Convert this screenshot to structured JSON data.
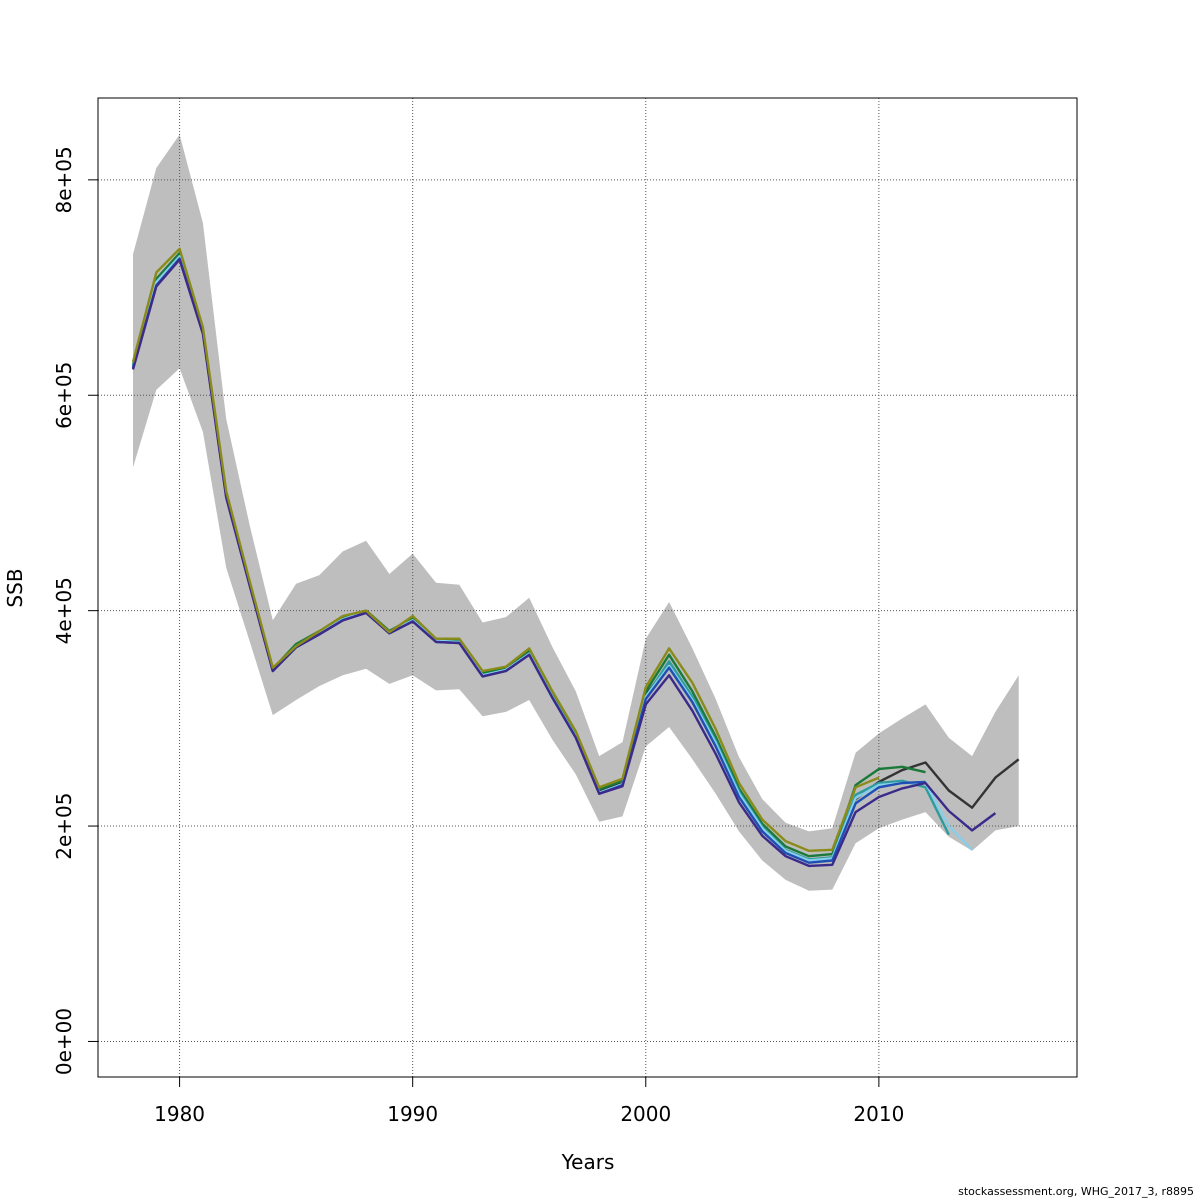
{
  "chart_data": {
    "type": "line",
    "title": "",
    "xlabel": "Years",
    "ylabel": "SSB",
    "xlim": [
      1976.5,
      2018.5
    ],
    "ylim": [
      -33000,
      876000
    ],
    "x_ticks": [
      1980,
      1990,
      2000,
      2010
    ],
    "x_tick_labels": [
      "1980",
      "1990",
      "2000",
      "2010"
    ],
    "y_ticks": [
      0,
      200000,
      400000,
      600000,
      800000
    ],
    "y_tick_labels": [
      "0e+00",
      "2e+05",
      "4e+05",
      "6e+05",
      "8e+05"
    ],
    "grid": true,
    "legend": "none",
    "confidence_band": {
      "color": "#bebebe",
      "x": [
        1978,
        1979,
        1980,
        1981,
        1982,
        1983,
        1984,
        1985,
        1986,
        1987,
        1988,
        1989,
        1990,
        1991,
        1992,
        1993,
        1994,
        1995,
        1996,
        1997,
        1998,
        1999,
        2000,
        2001,
        2002,
        2003,
        2004,
        2005,
        2006,
        2007,
        2008,
        2009,
        2010,
        2011,
        2012,
        2013,
        2014,
        2015,
        2016
      ],
      "lower": [
        533000,
        605000,
        625000,
        566000,
        440000,
        372000,
        303000,
        317000,
        330000,
        340000,
        346000,
        332000,
        340000,
        326000,
        327000,
        302000,
        306000,
        317000,
        280000,
        248000,
        204000,
        209000,
        274000,
        292000,
        262000,
        230000,
        195000,
        168000,
        150000,
        140000,
        141000,
        184000,
        198000,
        206000,
        213000,
        190000,
        177000,
        196000,
        200000
      ],
      "upper": [
        731000,
        811000,
        842000,
        760000,
        578000,
        480000,
        391000,
        425000,
        433000,
        455000,
        465000,
        434000,
        453000,
        426000,
        424000,
        389000,
        394000,
        412000,
        366000,
        325000,
        265000,
        278000,
        374000,
        408000,
        365000,
        318000,
        264000,
        225000,
        203000,
        195000,
        198000,
        268000,
        286000,
        300000,
        313000,
        282000,
        265000,
        306000,
        340000
      ]
    },
    "series": [
      {
        "color": "#333333",
        "x": [
          1978,
          1979,
          1980,
          1981,
          1982,
          1983,
          1984,
          1985,
          1986,
          1987,
          1988,
          1989,
          1990,
          1991,
          1992,
          1993,
          1994,
          1995,
          1996,
          1997,
          1998,
          1999,
          2000,
          2001,
          2002,
          2003,
          2004,
          2005,
          2006,
          2007,
          2008,
          2009,
          2010,
          2011,
          2012,
          2013,
          2014,
          2015,
          2016
        ],
        "values": [
          627000,
          706000,
          730000,
          660000,
          508000,
          426000,
          346000,
          368000,
          380000,
          394000,
          400000,
          381000,
          393000,
          373000,
          372000,
          341000,
          347000,
          362000,
          322000,
          285000,
          233000,
          241000,
          322000,
          350000,
          315000,
          275000,
          229000,
          197000,
          176000,
          167000,
          169000,
          225000,
          241000,
          252000,
          259000,
          233000,
          217000,
          245000,
          262000
        ]
      },
      {
        "color": "#1b7a3a",
        "x": [
          1978,
          1979,
          1980,
          1981,
          1982,
          1983,
          1984,
          1985,
          1986,
          1987,
          1988,
          1989,
          1990,
          1991,
          1992,
          1993,
          1994,
          1995,
          1996,
          1997,
          1998,
          1999,
          2000,
          2001,
          2002,
          2003,
          2004,
          2005,
          2006,
          2007,
          2008,
          2009,
          2010,
          2011,
          2012
        ],
        "values": [
          628000,
          708000,
          732000,
          661000,
          509000,
          427000,
          346000,
          369000,
          381000,
          394000,
          400000,
          381000,
          393000,
          373000,
          373000,
          342000,
          347000,
          363000,
          323000,
          286000,
          234000,
          242000,
          325000,
          359000,
          325000,
          283000,
          235000,
          202000,
          181000,
          172000,
          174000,
          238000,
          253000,
          255000,
          250000
        ]
      },
      {
        "color": "#2e9c9c",
        "x": [
          1978,
          1979,
          1980,
          1981,
          1982,
          1983,
          1984,
          1985,
          1986,
          1987,
          1988,
          1989,
          1990,
          1991,
          1992,
          1993,
          1994,
          1995,
          1996,
          1997,
          1998,
          1999,
          2000,
          2001,
          2002,
          2003,
          2004,
          2005,
          2006,
          2007,
          2008,
          2009,
          2010,
          2011,
          2012,
          2013
        ],
        "values": [
          626000,
          705000,
          729000,
          659000,
          507000,
          425000,
          345000,
          367000,
          379000,
          392000,
          399000,
          380000,
          391000,
          372000,
          371000,
          340000,
          345000,
          360000,
          320000,
          283000,
          231000,
          239000,
          320000,
          353000,
          320000,
          279000,
          232000,
          199000,
          178000,
          169000,
          171000,
          229000,
          240000,
          242000,
          236000,
          192000
        ]
      },
      {
        "color": "#87ceeb",
        "x": [
          1978,
          1979,
          1980,
          1981,
          1982,
          1983,
          1984,
          1985,
          1986,
          1987,
          1988,
          1989,
          1990,
          1991,
          1992,
          1993,
          1994,
          1995,
          1996,
          1997,
          1998,
          1999,
          2000,
          2001,
          2002,
          2003,
          2004,
          2005,
          2006,
          2007,
          2008,
          2009,
          2010,
          2011,
          2012,
          2013,
          2014
        ],
        "values": [
          626000,
          705000,
          729000,
          659000,
          507000,
          425000,
          345000,
          367000,
          379000,
          392000,
          399000,
          380000,
          391000,
          372000,
          371000,
          340000,
          345000,
          360000,
          320000,
          283000,
          231000,
          239000,
          320000,
          349000,
          317000,
          277000,
          230000,
          198000,
          177000,
          168000,
          170000,
          226000,
          238000,
          240000,
          240000,
          200000,
          178000
        ]
      },
      {
        "color": "#1f4fb3",
        "x": [
          1978,
          1979,
          1980,
          1981,
          1982,
          1983,
          1984,
          1985,
          1986,
          1987,
          1988,
          1989,
          1990,
          1991,
          1992,
          1993,
          1994,
          1995,
          1996,
          1997,
          1998,
          1999,
          2000,
          2001,
          2002,
          2003,
          2004,
          2005,
          2006,
          2007,
          2008,
          2009,
          2010,
          2011,
          2012
        ],
        "values": [
          625000,
          702000,
          727000,
          658000,
          506000,
          424000,
          344000,
          366000,
          378000,
          391000,
          398000,
          379000,
          390000,
          371000,
          370000,
          339000,
          344000,
          359000,
          319000,
          282000,
          230000,
          238000,
          318000,
          347000,
          315000,
          274000,
          227000,
          195000,
          175000,
          166000,
          168000,
          221000,
          236000,
          240000,
          241000
        ]
      },
      {
        "color": "#3b2a8a",
        "x": [
          1978,
          1979,
          1980,
          1981,
          1982,
          1983,
          1984,
          1985,
          1986,
          1987,
          1988,
          1989,
          1990,
          1991,
          1992,
          1993,
          1994,
          1995,
          1996,
          1997,
          1998,
          1999,
          2000,
          2001,
          2002,
          2003,
          2004,
          2005,
          2006,
          2007,
          2008,
          2009,
          2010,
          2011,
          2012,
          2013,
          2014,
          2015
        ],
        "values": [
          624000,
          701000,
          726000,
          657000,
          505000,
          424000,
          344000,
          366000,
          378000,
          391000,
          398000,
          379000,
          390000,
          371000,
          370000,
          339000,
          344000,
          359000,
          319000,
          282000,
          230000,
          237000,
          313000,
          340000,
          307000,
          267000,
          222000,
          191000,
          172000,
          163000,
          164000,
          213000,
          227000,
          235000,
          240000,
          214000,
          196000,
          212000
        ]
      },
      {
        "color": "#8b8b1a",
        "x": [
          1978,
          1979,
          1980,
          1981,
          1982,
          1983,
          1984,
          1985,
          1986,
          1987,
          1988,
          1989,
          1990,
          1991,
          1992,
          1993,
          1994,
          1995,
          1996,
          1997,
          1998,
          1999,
          2000,
          2001,
          2002,
          2003,
          2004,
          2005,
          2006,
          2007,
          2008,
          2009,
          2010
        ],
        "values": [
          631000,
          714000,
          736000,
          663000,
          511000,
          428000,
          347000,
          367000,
          381000,
          395000,
          400000,
          380000,
          395000,
          374000,
          374000,
          344000,
          348000,
          365000,
          325000,
          288000,
          236000,
          244000,
          329000,
          365000,
          333000,
          290000,
          240000,
          206000,
          186000,
          177000,
          178000,
          236000,
          245000
        ]
      }
    ]
  },
  "footer": {
    "text": "stockassessment.org, WHG_2017_3, r8895"
  }
}
